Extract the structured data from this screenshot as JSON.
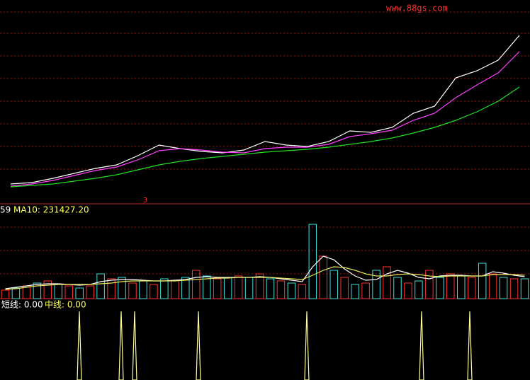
{
  "watermark": "www.88gs.com",
  "chart_data": [
    {
      "type": "line",
      "marker_label": "3",
      "categories": [
        null,
        null,
        null,
        null,
        null,
        null,
        null,
        null,
        null,
        null,
        null,
        null,
        null,
        null,
        null,
        null,
        null,
        null,
        null,
        null,
        null,
        null,
        null,
        null,
        null
      ],
      "ylim": [
        0,
        288
      ],
      "series": [
        {
          "color": "#ffffff",
          "values": [
            28,
            30,
            36,
            43,
            50,
            55,
            68,
            83,
            78,
            74,
            72,
            76,
            88,
            83,
            81,
            88,
            103,
            101,
            108,
            128,
            138,
            178,
            188,
            203,
            238
          ]
        },
        {
          "color": "#ff40ff",
          "values": [
            25,
            28,
            33,
            40,
            47,
            52,
            62,
            75,
            78,
            76,
            73,
            72,
            78,
            80,
            80,
            84,
            95,
            99,
            104,
            118,
            128,
            150,
            168,
            185,
            215
          ]
        },
        {
          "color": "#20e020",
          "values": [
            24,
            26,
            28,
            32,
            36,
            41,
            48,
            55,
            60,
            64,
            67,
            70,
            73,
            75,
            77,
            80,
            84,
            88,
            93,
            100,
            108,
            118,
            130,
            145,
            165
          ]
        }
      ]
    },
    {
      "type": "bar",
      "prefix": "59",
      "label": "MA10: 231427.20",
      "categories": [
        null,
        null,
        null,
        null,
        null,
        null,
        null,
        null,
        null,
        null,
        null,
        null,
        null,
        null,
        null,
        null,
        null,
        null,
        null,
        null,
        null,
        null,
        null,
        null,
        null,
        null,
        null,
        null,
        null,
        null,
        null,
        null,
        null,
        null,
        null,
        null,
        null,
        null,
        null,
        null,
        null,
        null,
        null,
        null,
        null,
        null,
        null,
        null,
        null,
        null
      ],
      "ylim": [
        0,
        132
      ],
      "series": [
        {
          "color": "#ff3232",
          "values": [
            12,
            null,
            18,
            null,
            25,
            null,
            18,
            null,
            18,
            null,
            28,
            null,
            22,
            null,
            20,
            null,
            26,
            null,
            40,
            null,
            28,
            null,
            32,
            null,
            35,
            null,
            25,
            null,
            20,
            null,
            60,
            null,
            30,
            null,
            22,
            null,
            45,
            null,
            22,
            null,
            40,
            null,
            35,
            null,
            30,
            null,
            35,
            null,
            28,
            null
          ]
        },
        {
          "color": "#40e0e0",
          "values": [
            null,
            15,
            null,
            22,
            null,
            20,
            null,
            15,
            null,
            35,
            null,
            30,
            null,
            25,
            null,
            28,
            null,
            30,
            null,
            32,
            null,
            30,
            null,
            30,
            null,
            28,
            null,
            22,
            null,
            105,
            null,
            40,
            null,
            20,
            null,
            40,
            null,
            30,
            null,
            25,
            null,
            30,
            null,
            32,
            null,
            50,
            null,
            30,
            null,
            28
          ]
        },
        {
          "type": "line",
          "color": "#ffffff",
          "values": [
            14,
            16,
            18,
            20,
            21,
            21,
            20,
            19,
            20,
            24,
            26,
            27,
            27,
            26,
            25,
            25,
            26,
            27,
            30,
            31,
            30,
            30,
            30,
            30,
            31,
            30,
            28,
            26,
            24,
            45,
            60,
            55,
            42,
            32,
            26,
            27,
            35,
            40,
            36,
            30,
            28,
            32,
            33,
            33,
            32,
            32,
            38,
            36,
            33,
            31
          ]
        },
        {
          "type": "line",
          "color": "#e8e860",
          "values": [
            13,
            14,
            16,
            18,
            19,
            20,
            20,
            20,
            20,
            21,
            22,
            24,
            25,
            25,
            25,
            25,
            25,
            26,
            27,
            28,
            29,
            29,
            30,
            30,
            30,
            30,
            29,
            28,
            27,
            33,
            40,
            45,
            44,
            40,
            35,
            32,
            32,
            34,
            35,
            34,
            32,
            31,
            32,
            32,
            32,
            32,
            34,
            34,
            34,
            33
          ]
        }
      ]
    },
    {
      "type": "spike",
      "label_short": "短线: 0.00",
      "label_mid": "中线: 0.00",
      "x": [
        112,
        171,
        190,
        280,
        433,
        595,
        663
      ],
      "values": [
        1,
        1,
        1,
        1,
        1,
        1,
        1
      ],
      "xlim": [
        0,
        748
      ],
      "ylim": [
        0,
        1
      ],
      "color": "#ffff99"
    }
  ]
}
